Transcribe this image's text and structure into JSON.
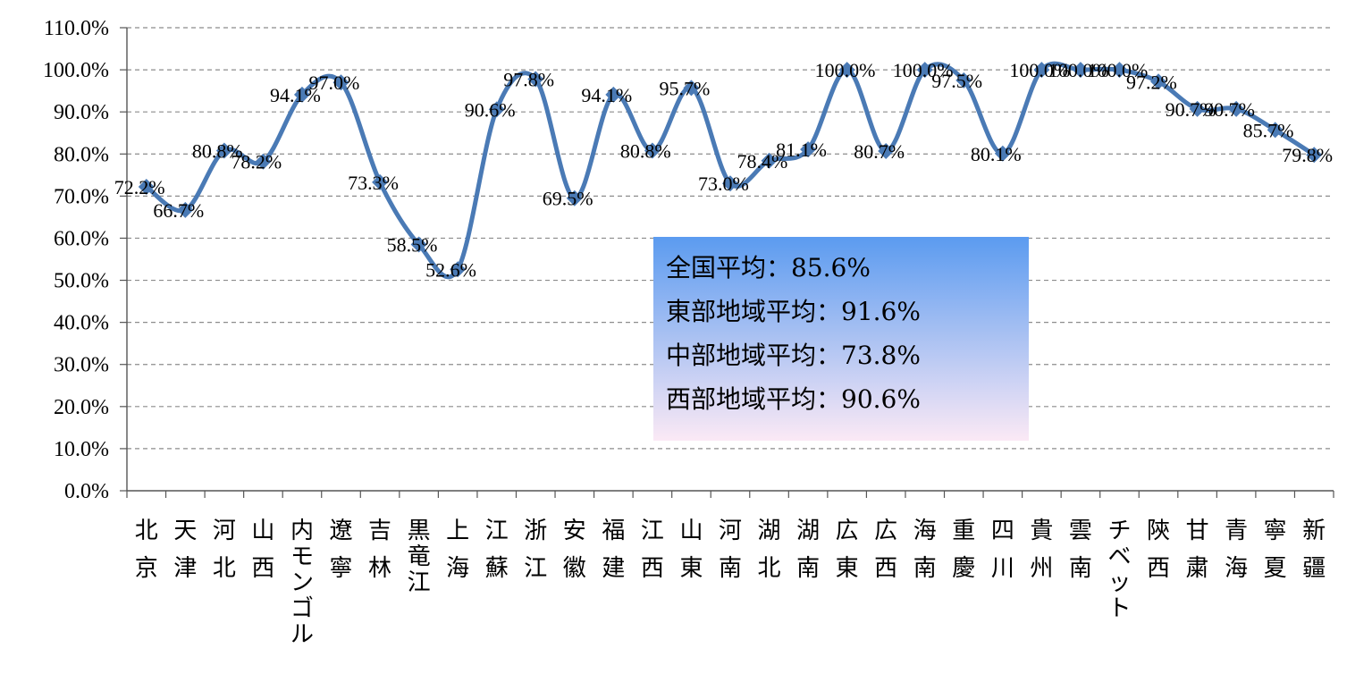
{
  "chart_data": {
    "type": "line",
    "title": "",
    "xlabel": "",
    "ylabel": "",
    "ylim": [
      0,
      110
    ],
    "yticks": [
      "0.0%",
      "10.0%",
      "20.0%",
      "30.0%",
      "40.0%",
      "50.0%",
      "60.0%",
      "70.0%",
      "80.0%",
      "90.0%",
      "100.0%",
      "110.0%"
    ],
    "grid": true,
    "smooth": true,
    "line_color": "#4a7ab5",
    "marker": "diamond",
    "categories": [
      "北京",
      "天津",
      "河北",
      "山西",
      "内モンゴル",
      "遼寧",
      "吉林",
      "黒竜江",
      "上海",
      "江蘇",
      "浙江",
      "安徽",
      "福建",
      "江西",
      "山東",
      "河南",
      "湖北",
      "湖南",
      "広東",
      "広西",
      "海南",
      "重慶",
      "四川",
      "貴州",
      "雲南",
      "チベット",
      "陝西",
      "甘粛",
      "青海",
      "寧夏",
      "新疆"
    ],
    "series": [
      {
        "values": [
          72.2,
          66.7,
          80.8,
          78.2,
          94.1,
          97.0,
          73.3,
          58.5,
          52.6,
          90.6,
          97.8,
          69.5,
          94.1,
          80.8,
          95.7,
          73.0,
          78.4,
          81.1,
          100.0,
          80.7,
          100.0,
          97.5,
          80.1,
          100.0,
          100.0,
          100.0,
          97.2,
          90.7,
          90.7,
          85.7,
          79.8
        ],
        "data_labels": [
          "72.2%",
          "66.7%",
          "80.8%",
          "78.2%",
          "94.1%",
          "97.0%",
          "73.3%",
          "58.5%",
          "52.6%",
          "90.6%",
          "97.8%",
          "69.5%",
          "94.1%",
          "80.8%",
          "95.7%",
          "73.0%",
          "78.4%",
          "81.1%",
          "100.0%",
          "80.7%",
          "100.0%",
          "97.5%",
          "80.1%",
          "100.0%",
          "100.0%",
          "100.0%",
          "97.2%",
          "90.7%",
          "90.7%",
          "85.7%",
          "79.8%"
        ]
      }
    ],
    "annotation": {
      "lines": [
        "全国平均：85.6%",
        "東部地域平均：91.6%",
        "中部地域平均：73.8%",
        "西部地域平均：90.6%"
      ],
      "gradient_top": "#5b9bf0",
      "gradient_bottom": "#fbe9f5"
    }
  }
}
